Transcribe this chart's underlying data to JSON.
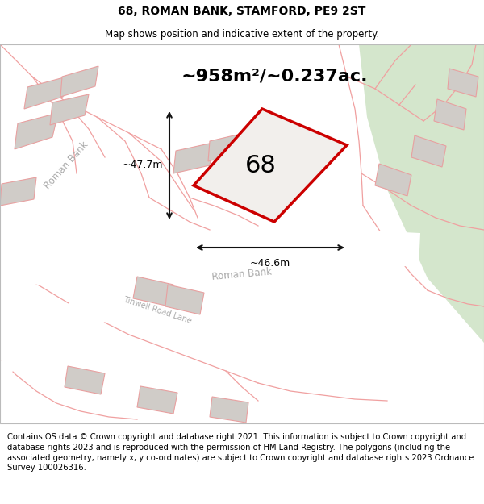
{
  "title": "68, ROMAN BANK, STAMFORD, PE9 2ST",
  "subtitle": "Map shows position and indicative extent of the property.",
  "area_label": "~958m²/~0.237ac.",
  "property_number": "68",
  "dim_height": "~47.7m",
  "dim_width": "~46.6m",
  "footer": "Contains OS data © Crown copyright and database right 2021. This information is subject to Crown copyright and database rights 2023 and is reproduced with the permission of HM Land Registry. The polygons (including the associated geometry, namely x, y co-ordinates) are subject to Crown copyright and database rights 2023 Ordnance Survey 100026316.",
  "bg_color": "#efefed",
  "green_color": "#d4e6cc",
  "road_color": "#ffffff",
  "building_color": "#d0ccc8",
  "building_edge": "#e8a0a0",
  "property_fill": "#f2efec",
  "property_edge": "#cc0000",
  "dim_color": "#111111",
  "road_label_color": "#aaaaaa",
  "cadastral_color": "#f0a0a0",
  "title_fontsize": 10,
  "subtitle_fontsize": 8.5,
  "footer_fontsize": 7.2,
  "area_fontsize": 16,
  "number_fontsize": 22,
  "dim_fontsize": 9,
  "road_fontsize": 8.5
}
